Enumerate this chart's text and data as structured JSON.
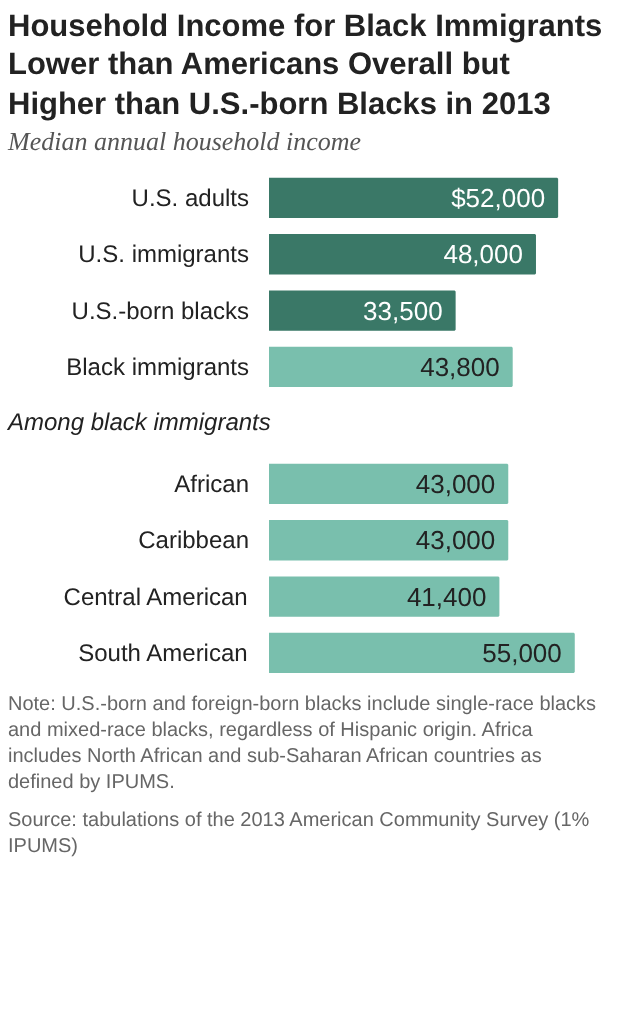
{
  "chart_data": {
    "type": "bar",
    "orientation": "horizontal",
    "title": "Household Income for Black Immigrants Lower than Americans Overall but Higher than U.S.-born  Blacks in 2013",
    "subtitle": "Median annual household income",
    "categories": [
      "U.S. adults",
      "U.S. immigrants",
      "U.S.-born blacks",
      "Black immigrants",
      null,
      "African",
      "Caribbean",
      "Central American",
      "South American"
    ],
    "values": [
      52000,
      48000,
      33500,
      43800,
      null,
      43000,
      43000,
      41400,
      55000
    ],
    "value_labels": [
      "$52,000",
      "48,000",
      "33,500",
      "43,800",
      null,
      "43,000",
      "43,000",
      "41,400",
      "55,000"
    ],
    "colors": [
      "#3a7867",
      "#3a7867",
      "#3a7867",
      "#79bfad",
      "#79bfad",
      "#79bfad",
      "#79bfad",
      "#79bfad",
      "#79bfad"
    ],
    "tick_labels": false,
    "grid": false,
    "annotations": [
      "Among black immigrants",
      "Note: U.S.-born and foreign-born blacks include single-race blacks and mixed-race blacks, regardless of Hispanic origin. Africa includes North African and sub-Saharan African countries as defined by IPUMS.",
      "Source: tabulations of the 2013 American Community Survey (1% IPUMS)"
    ]
  }
}
